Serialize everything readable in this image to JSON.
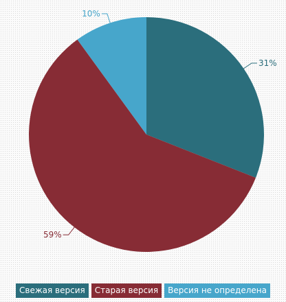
{
  "chart_data": {
    "type": "pie",
    "categories": [
      "Свежая версия",
      "Старая версия",
      "Версия не определена"
    ],
    "values": [
      31,
      59,
      10
    ],
    "labels": [
      "31%",
      "59%",
      "10%"
    ],
    "colors": [
      "#2b6e7c",
      "#872c35",
      "#47a6cb"
    ],
    "legend_placement": "bottom",
    "start_angle_deg": 0,
    "direction": "clockwise"
  },
  "legend": {
    "items": [
      {
        "label": "Свежая версия",
        "color": "#2b6e7c"
      },
      {
        "label": "Старая версия",
        "color": "#872c35"
      },
      {
        "label": "Версия не определена",
        "color": "#47a6cb"
      }
    ]
  }
}
